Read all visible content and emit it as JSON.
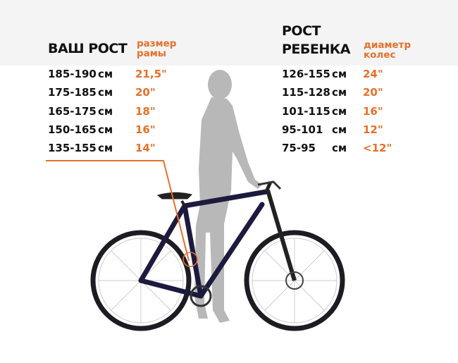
{
  "adult": {
    "title": "ВАШ РОСТ",
    "column_label_1": "размер",
    "column_label_2": "рамы",
    "rows": [
      {
        "height": "185-190",
        "unit": "см",
        "size": "21,5\""
      },
      {
        "height": "175-185",
        "unit": "см",
        "size": "20\""
      },
      {
        "height": "165-175",
        "unit": "см",
        "size": "18\""
      },
      {
        "height": "150-165",
        "unit": "см",
        "size": "16\""
      },
      {
        "height": "135-155",
        "unit": "см",
        "size": "14\""
      }
    ]
  },
  "child": {
    "title_1": "РОСТ",
    "title_2": "РЕБЕНКА",
    "column_label_1": "диаметр",
    "column_label_2": "колес",
    "rows": [
      {
        "height": "126-155",
        "unit": "см",
        "size": "24\""
      },
      {
        "height": "115-128",
        "unit": "см",
        "size": "20\""
      },
      {
        "height": "101-115",
        "unit": "см",
        "size": "16\""
      },
      {
        "height": "95-101",
        "unit": "см",
        "size": "12\""
      },
      {
        "height": "75-95",
        "unit": "см",
        "size": "<12\""
      }
    ]
  },
  "colors": {
    "accent": "#e8702a",
    "bike_frame": "#1c1a3e",
    "silhouette": "#b5b5b5"
  }
}
